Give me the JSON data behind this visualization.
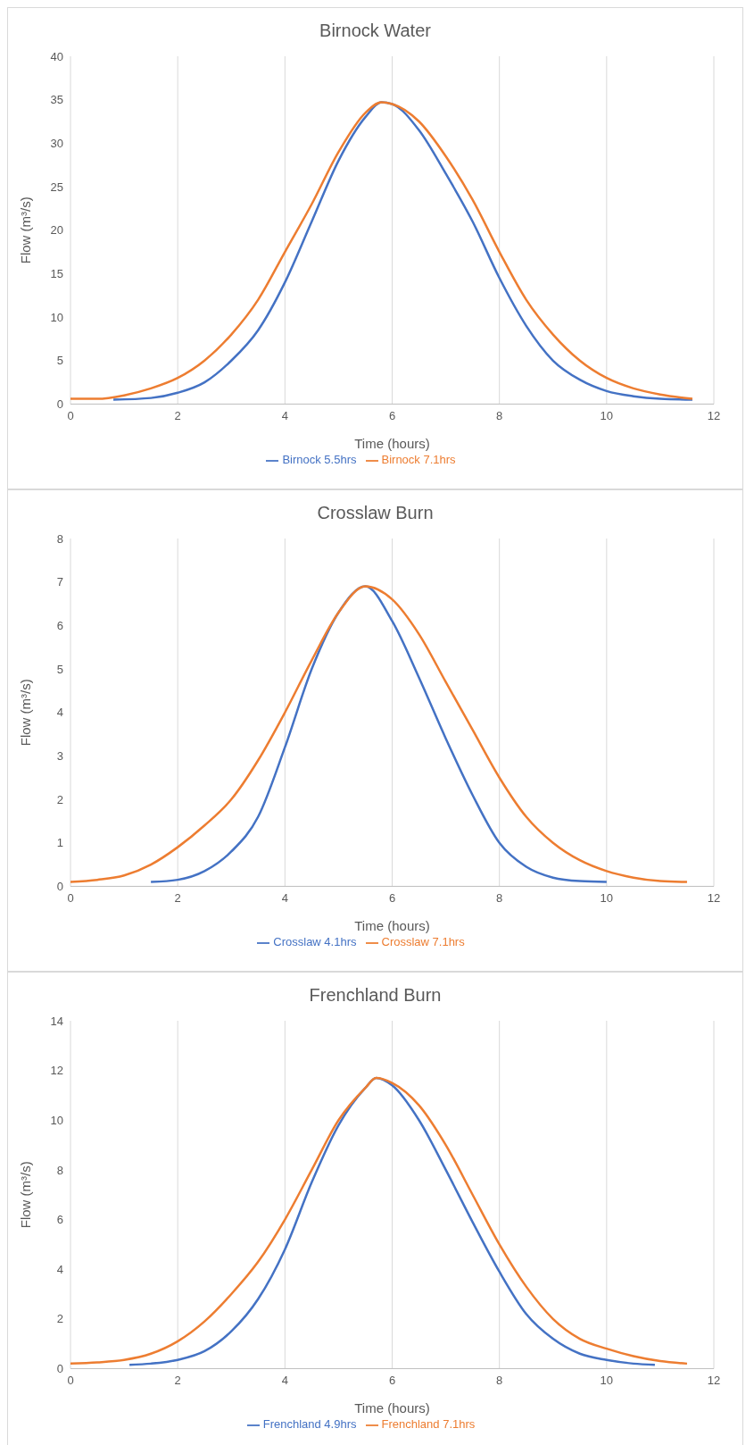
{
  "chart_data": [
    {
      "type": "line",
      "title": "Birnock Water",
      "xlabel": "Time (hours)",
      "ylabel": "Flow (m³/s)",
      "xlim": [
        0,
        12
      ],
      "xticks": [
        0,
        2,
        4,
        6,
        8,
        10,
        12
      ],
      "ylim": [
        0,
        40
      ],
      "yticks": [
        0,
        5,
        10,
        15,
        20,
        25,
        30,
        35,
        40
      ],
      "grid": "x",
      "legend": "bottom",
      "marker": "none",
      "line_style": "solid",
      "series": [
        {
          "name": "Birnock 5.5hrs",
          "color": "#4472c4",
          "x": [
            0.8,
            1.5,
            2,
            2.5,
            3,
            3.5,
            4,
            4.5,
            5,
            5.5,
            5.8,
            6,
            6.5,
            7,
            7.5,
            8,
            8.5,
            9,
            9.5,
            10,
            10.5,
            11,
            11.6
          ],
          "values": [
            0.5,
            0.7,
            1.3,
            2.5,
            5,
            8.5,
            14,
            21,
            28,
            33,
            34.7,
            34.5,
            31.5,
            26.5,
            21,
            14.5,
            9,
            5,
            2.8,
            1.5,
            0.9,
            0.6,
            0.5
          ]
        },
        {
          "name": "Birnock 7.1hrs",
          "color": "#ed7d31",
          "x": [
            0,
            0.5,
            1,
            1.5,
            2,
            2.5,
            3,
            3.5,
            4,
            4.5,
            5,
            5.5,
            5.8,
            6,
            6.5,
            7,
            7.5,
            8,
            8.5,
            9,
            9.5,
            10,
            10.5,
            11,
            11.6
          ],
          "values": [
            0.6,
            0.6,
            1,
            1.8,
            3,
            5,
            8,
            12,
            17.5,
            23,
            29,
            33.5,
            34.7,
            34.5,
            32.5,
            28.5,
            23.5,
            17.5,
            12,
            8,
            5,
            3,
            1.8,
            1.1,
            0.6
          ]
        }
      ]
    },
    {
      "type": "line",
      "title": "Crosslaw Burn",
      "xlabel": "Time (hours)",
      "ylabel": "Flow (m³/s)",
      "xlim": [
        0,
        12
      ],
      "xticks": [
        0,
        2,
        4,
        6,
        8,
        10,
        12
      ],
      "ylim": [
        0,
        8
      ],
      "yticks": [
        0,
        1,
        2,
        3,
        4,
        5,
        6,
        7,
        8
      ],
      "grid": "x",
      "legend": "bottom",
      "marker": "none",
      "line_style": "solid",
      "series": [
        {
          "name": "Crosslaw 4.1hrs",
          "color": "#4472c4",
          "x": [
            1.5,
            2,
            2.5,
            3,
            3.5,
            4,
            4.5,
            5,
            5.5,
            6,
            6.5,
            7,
            7.5,
            8,
            8.5,
            9,
            9.5,
            10
          ],
          "values": [
            0.1,
            0.15,
            0.35,
            0.8,
            1.6,
            3.2,
            5,
            6.3,
            6.9,
            6.1,
            4.8,
            3.4,
            2.1,
            1,
            0.45,
            0.2,
            0.12,
            0.1
          ]
        },
        {
          "name": "Crosslaw 7.1hrs",
          "color": "#ed7d31",
          "x": [
            0,
            0.5,
            1,
            1.5,
            2,
            2.5,
            3,
            3.5,
            4,
            4.5,
            5,
            5.5,
            6,
            6.5,
            7,
            7.5,
            8,
            8.5,
            9,
            9.5,
            10,
            10.5,
            11,
            11.5
          ],
          "values": [
            0.1,
            0.15,
            0.25,
            0.5,
            0.9,
            1.4,
            2,
            2.9,
            4,
            5.2,
            6.3,
            6.9,
            6.6,
            5.8,
            4.7,
            3.6,
            2.5,
            1.6,
            1,
            0.6,
            0.35,
            0.2,
            0.12,
            0.1
          ]
        }
      ]
    },
    {
      "type": "line",
      "title": "Frenchland Burn",
      "xlabel": "Time (hours)",
      "ylabel": "Flow (m³/s)",
      "xlim": [
        0,
        12
      ],
      "xticks": [
        0,
        2,
        4,
        6,
        8,
        10,
        12
      ],
      "ylim": [
        0,
        14
      ],
      "yticks": [
        0,
        2,
        4,
        6,
        8,
        10,
        12,
        14
      ],
      "grid": "x",
      "legend": "bottom",
      "marker": "none",
      "line_style": "solid",
      "series": [
        {
          "name": "Frenchland 4.9hrs",
          "color": "#4472c4",
          "x": [
            1.1,
            1.5,
            2,
            2.5,
            3,
            3.5,
            4,
            4.5,
            5,
            5.5,
            5.7,
            6,
            6.5,
            7,
            7.5,
            8,
            8.5,
            9,
            9.5,
            10,
            10.5,
            10.9
          ],
          "values": [
            0.15,
            0.2,
            0.35,
            0.7,
            1.5,
            2.8,
            4.8,
            7.5,
            9.8,
            11.3,
            11.7,
            11.4,
            10,
            8,
            5.9,
            3.9,
            2.2,
            1.2,
            0.6,
            0.35,
            0.2,
            0.15
          ]
        },
        {
          "name": "Frenchland 7.1hrs",
          "color": "#ed7d31",
          "x": [
            0,
            0.5,
            1,
            1.5,
            2,
            2.5,
            3,
            3.5,
            4,
            4.5,
            5,
            5.5,
            5.7,
            6,
            6.5,
            7,
            7.5,
            8,
            8.5,
            9,
            9.5,
            10,
            10.5,
            11,
            11.5
          ],
          "values": [
            0.2,
            0.25,
            0.35,
            0.6,
            1.1,
            1.9,
            3,
            4.3,
            6,
            8,
            10,
            11.3,
            11.7,
            11.5,
            10.6,
            9,
            7,
            5,
            3.3,
            2,
            1.2,
            0.8,
            0.5,
            0.3,
            0.2
          ]
        }
      ]
    }
  ]
}
